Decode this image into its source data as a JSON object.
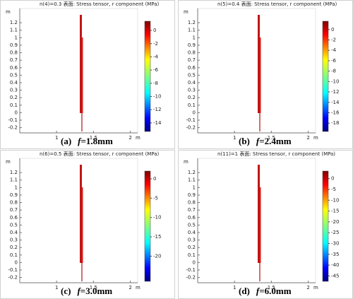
{
  "chart_data": [
    {
      "type": "heatmap",
      "title": "n(4)=0.3  表面: Stress tensor, r component (MPa)",
      "xlabel": "m",
      "ylabel": "m",
      "xlim": [
        0.5,
        2.1
      ],
      "xticks": [
        1,
        1.5,
        2
      ],
      "ylim": [
        -0.27,
        1.39
      ],
      "yticks": [
        -0.2,
        -0.1,
        0,
        0.1,
        0.2,
        0.3,
        0.4,
        0.5,
        0.6,
        0.7,
        0.8,
        0.9,
        1,
        1.1,
        1.2
      ],
      "colorbar": {
        "lim": [
          -15.3,
          1.4
        ],
        "ticks": [
          0,
          -2,
          -4,
          -6,
          -8,
          -10,
          -12,
          -14
        ]
      },
      "caption_label": "(a)",
      "caption_symbol": "f",
      "caption_value": "=1.8mm"
    },
    {
      "type": "heatmap",
      "title": "n(5)=0.4  表面: Stress tensor, r component (MPa)",
      "xlabel": "m",
      "ylabel": "m",
      "xlim": [
        0.5,
        2.1
      ],
      "xticks": [
        1,
        1.5,
        2
      ],
      "ylim": [
        -0.27,
        1.39
      ],
      "yticks": [
        -0.2,
        -0.1,
        0,
        0.1,
        0.2,
        0.3,
        0.4,
        0.5,
        0.6,
        0.7,
        0.8,
        0.9,
        1,
        1.1,
        1.2
      ],
      "colorbar": {
        "lim": [
          -19.6,
          1.6
        ],
        "ticks": [
          0,
          -2,
          -4,
          -6,
          -8,
          -10,
          -12,
          -14,
          -16,
          -18
        ]
      },
      "caption_label": "(b)",
      "caption_symbol": "f",
      "caption_value": "=2.4mm"
    },
    {
      "type": "heatmap",
      "title": "n(6)=0.5  表面: Stress tensor, r component (MPa)",
      "xlabel": "m",
      "ylabel": "m",
      "xlim": [
        0.5,
        2.1
      ],
      "xticks": [
        1,
        1.5,
        2
      ],
      "ylim": [
        -0.27,
        1.39
      ],
      "yticks": [
        -0.2,
        -0.1,
        0,
        0.1,
        0.2,
        0.3,
        0.4,
        0.5,
        0.6,
        0.7,
        0.8,
        0.9,
        1,
        1.1,
        1.2
      ],
      "colorbar": {
        "lim": [
          -26.5,
          2
        ],
        "ticks": [
          0,
          -5,
          -10,
          -15,
          -20
        ]
      },
      "caption_label": "(c)",
      "caption_symbol": "f",
      "caption_value": "=3.0mm"
    },
    {
      "type": "heatmap",
      "title": "n(11)=1  表面: Stress tensor, r component (MPa)",
      "xlabel": "m",
      "ylabel": "m",
      "xlim": [
        0.5,
        2.1
      ],
      "xticks": [
        1,
        1.5,
        2
      ],
      "ylim": [
        -0.27,
        1.39
      ],
      "yticks": [
        -0.2,
        -0.1,
        0,
        0.1,
        0.2,
        0.3,
        0.4,
        0.5,
        0.6,
        0.7,
        0.8,
        0.9,
        1,
        1.1,
        1.2
      ],
      "colorbar": {
        "lim": [
          -47.5,
          3.5
        ],
        "ticks": [
          0,
          -5,
          -10,
          -15,
          -20,
          -25,
          -30,
          -35,
          -40,
          -45
        ]
      },
      "caption_label": "(d)",
      "caption_symbol": "f",
      "caption_value": "=6.0mm"
    }
  ]
}
